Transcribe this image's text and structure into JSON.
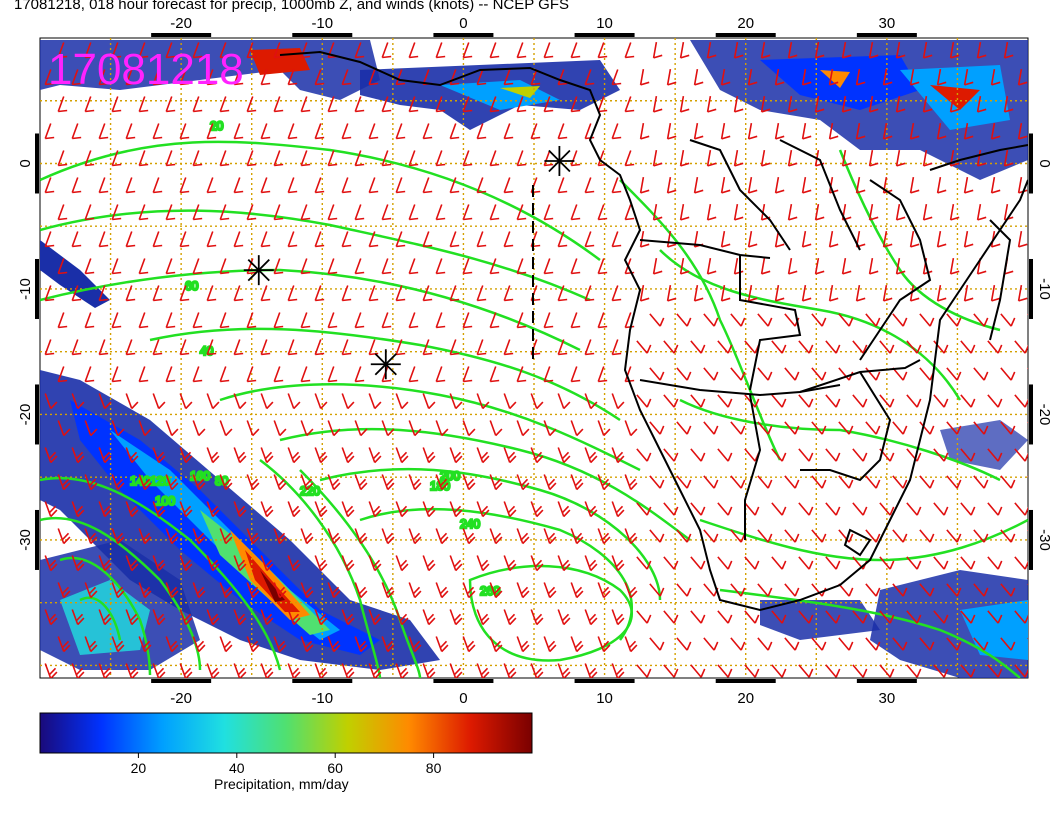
{
  "title": "17081218, 018 hour forecast for precip, 1000mb Z, and winds (knots) -- NCEP GFS",
  "stamp": "17081218",
  "lon_ticks": [
    "-20",
    "-10",
    "0",
    "10",
    "20",
    "30"
  ],
  "lat_ticks": [
    "0",
    "-10",
    "-20",
    "-30"
  ],
  "lon_range": [
    -30,
    40
  ],
  "lat_range": [
    -41,
    10
  ],
  "contour_labels": [
    "20",
    "40",
    "60",
    "80",
    "100",
    "120",
    "140",
    "160",
    "180",
    "200",
    "220",
    "240",
    "260"
  ],
  "colorbar": {
    "title": "Precipitation, mm/day",
    "ticks": [
      "20",
      "40",
      "60",
      "80"
    ],
    "colors": [
      "#1a0a7a",
      "#0033ff",
      "#00a0ff",
      "#20e0e0",
      "#50e070",
      "#c0d000",
      "#ff8a00",
      "#dd1a00",
      "#7a0000"
    ]
  },
  "markers": [
    {
      "name": "high-center-1",
      "lon": -14.5,
      "lat": -8.5
    },
    {
      "name": "high-center-2",
      "lon": -5.5,
      "lat": -16
    },
    {
      "name": "high-center-3",
      "lon": 6.8,
      "lat": 0.2
    }
  ],
  "colors": {
    "contour": "#22e022",
    "barb": "#e01010",
    "grid": "#d4a000",
    "stamp": "#ff22ff",
    "coast": "#000000"
  }
}
